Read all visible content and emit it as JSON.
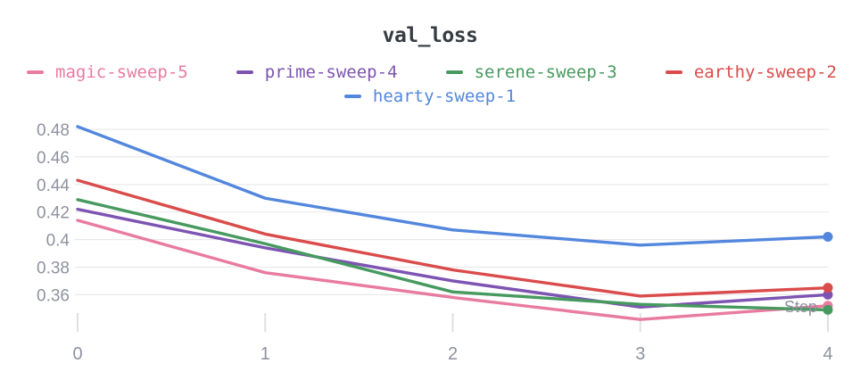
{
  "chart_data": {
    "type": "line",
    "title": "val_loss",
    "xlabel": "Step",
    "x": [
      0,
      1,
      2,
      3,
      4
    ],
    "x_ticks": [
      "0",
      "1",
      "2",
      "3",
      "4"
    ],
    "y_ticks": [
      0.48,
      0.46,
      0.44,
      0.42,
      0.4,
      0.38,
      0.36
    ],
    "ylim": [
      0.34,
      0.49
    ],
    "grid": "horizontal",
    "legend_position": "top",
    "end_markers": true,
    "series": [
      {
        "name": "magic-sweep-5",
        "color": "#E87B9F",
        "values": [
          0.414,
          0.376,
          0.358,
          0.342,
          0.352
        ]
      },
      {
        "name": "prime-sweep-4",
        "color": "#7D54B2",
        "values": [
          0.422,
          0.394,
          0.37,
          0.351,
          0.36
        ]
      },
      {
        "name": "serene-sweep-3",
        "color": "#479A5F",
        "values": [
          0.429,
          0.397,
          0.362,
          0.353,
          0.349
        ]
      },
      {
        "name": "earthy-sweep-2",
        "color": "#DA4C4C",
        "values": [
          0.443,
          0.404,
          0.378,
          0.359,
          0.365
        ]
      },
      {
        "name": "hearty-sweep-1",
        "color": "#5387DD",
        "values": [
          0.482,
          0.43,
          0.407,
          0.396,
          0.402
        ]
      }
    ],
    "legend_rows": [
      [
        "magic-sweep-5",
        "prime-sweep-4",
        "serene-sweep-3",
        "earthy-sweep-2"
      ],
      [
        "hearty-sweep-1"
      ]
    ]
  },
  "axis_colors": {
    "grid": "#e9e9ec",
    "tick": "#e0e0e4",
    "label": "#8f929e",
    "step_label": "#9a9aa0"
  }
}
